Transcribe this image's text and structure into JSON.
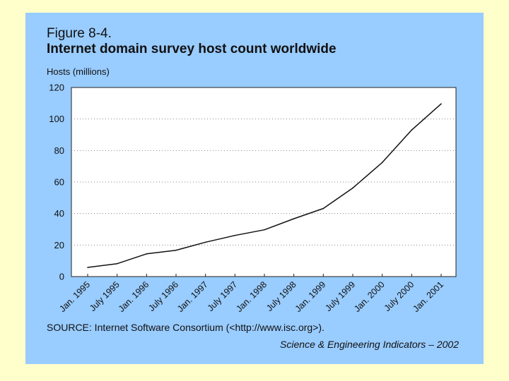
{
  "figure": {
    "label": "Figure 8-4.",
    "title": "Internet domain survey host count worldwide",
    "source": "SOURCE: Internet Software Consortium (<http://www.isc.org>).",
    "credit": "Science & Engineering Indicators – 2002"
  },
  "colors": {
    "slide_background": "#ffffcc",
    "panel_background": "#99ccff",
    "plot_background": "#ffffff",
    "line": "#111111"
  },
  "chart_data": {
    "type": "line",
    "title": "Internet domain survey host count worldwide",
    "ylabel": "Hosts (millions)",
    "xlabel": "",
    "categories": [
      "Jan. 1995",
      "July 1995",
      "Jan. 1996",
      "July 1996",
      "Jan. 1997",
      "July 1997",
      "Jan. 1998",
      "July 1998",
      "Jan. 1999",
      "July 1999",
      "Jan. 2000",
      "July 2000",
      "Jan. 2001"
    ],
    "series": [
      {
        "values": [
          5.8,
          8.2,
          14.4,
          16.7,
          21.8,
          26.1,
          29.7,
          36.7,
          43.2,
          56.2,
          72.4,
          93.0,
          109.6
        ]
      }
    ],
    "ylim": [
      0,
      120
    ],
    "yticks": [
      0,
      20,
      40,
      60,
      80,
      100,
      120
    ],
    "grid": "horizontal dotted",
    "legend": "none"
  }
}
